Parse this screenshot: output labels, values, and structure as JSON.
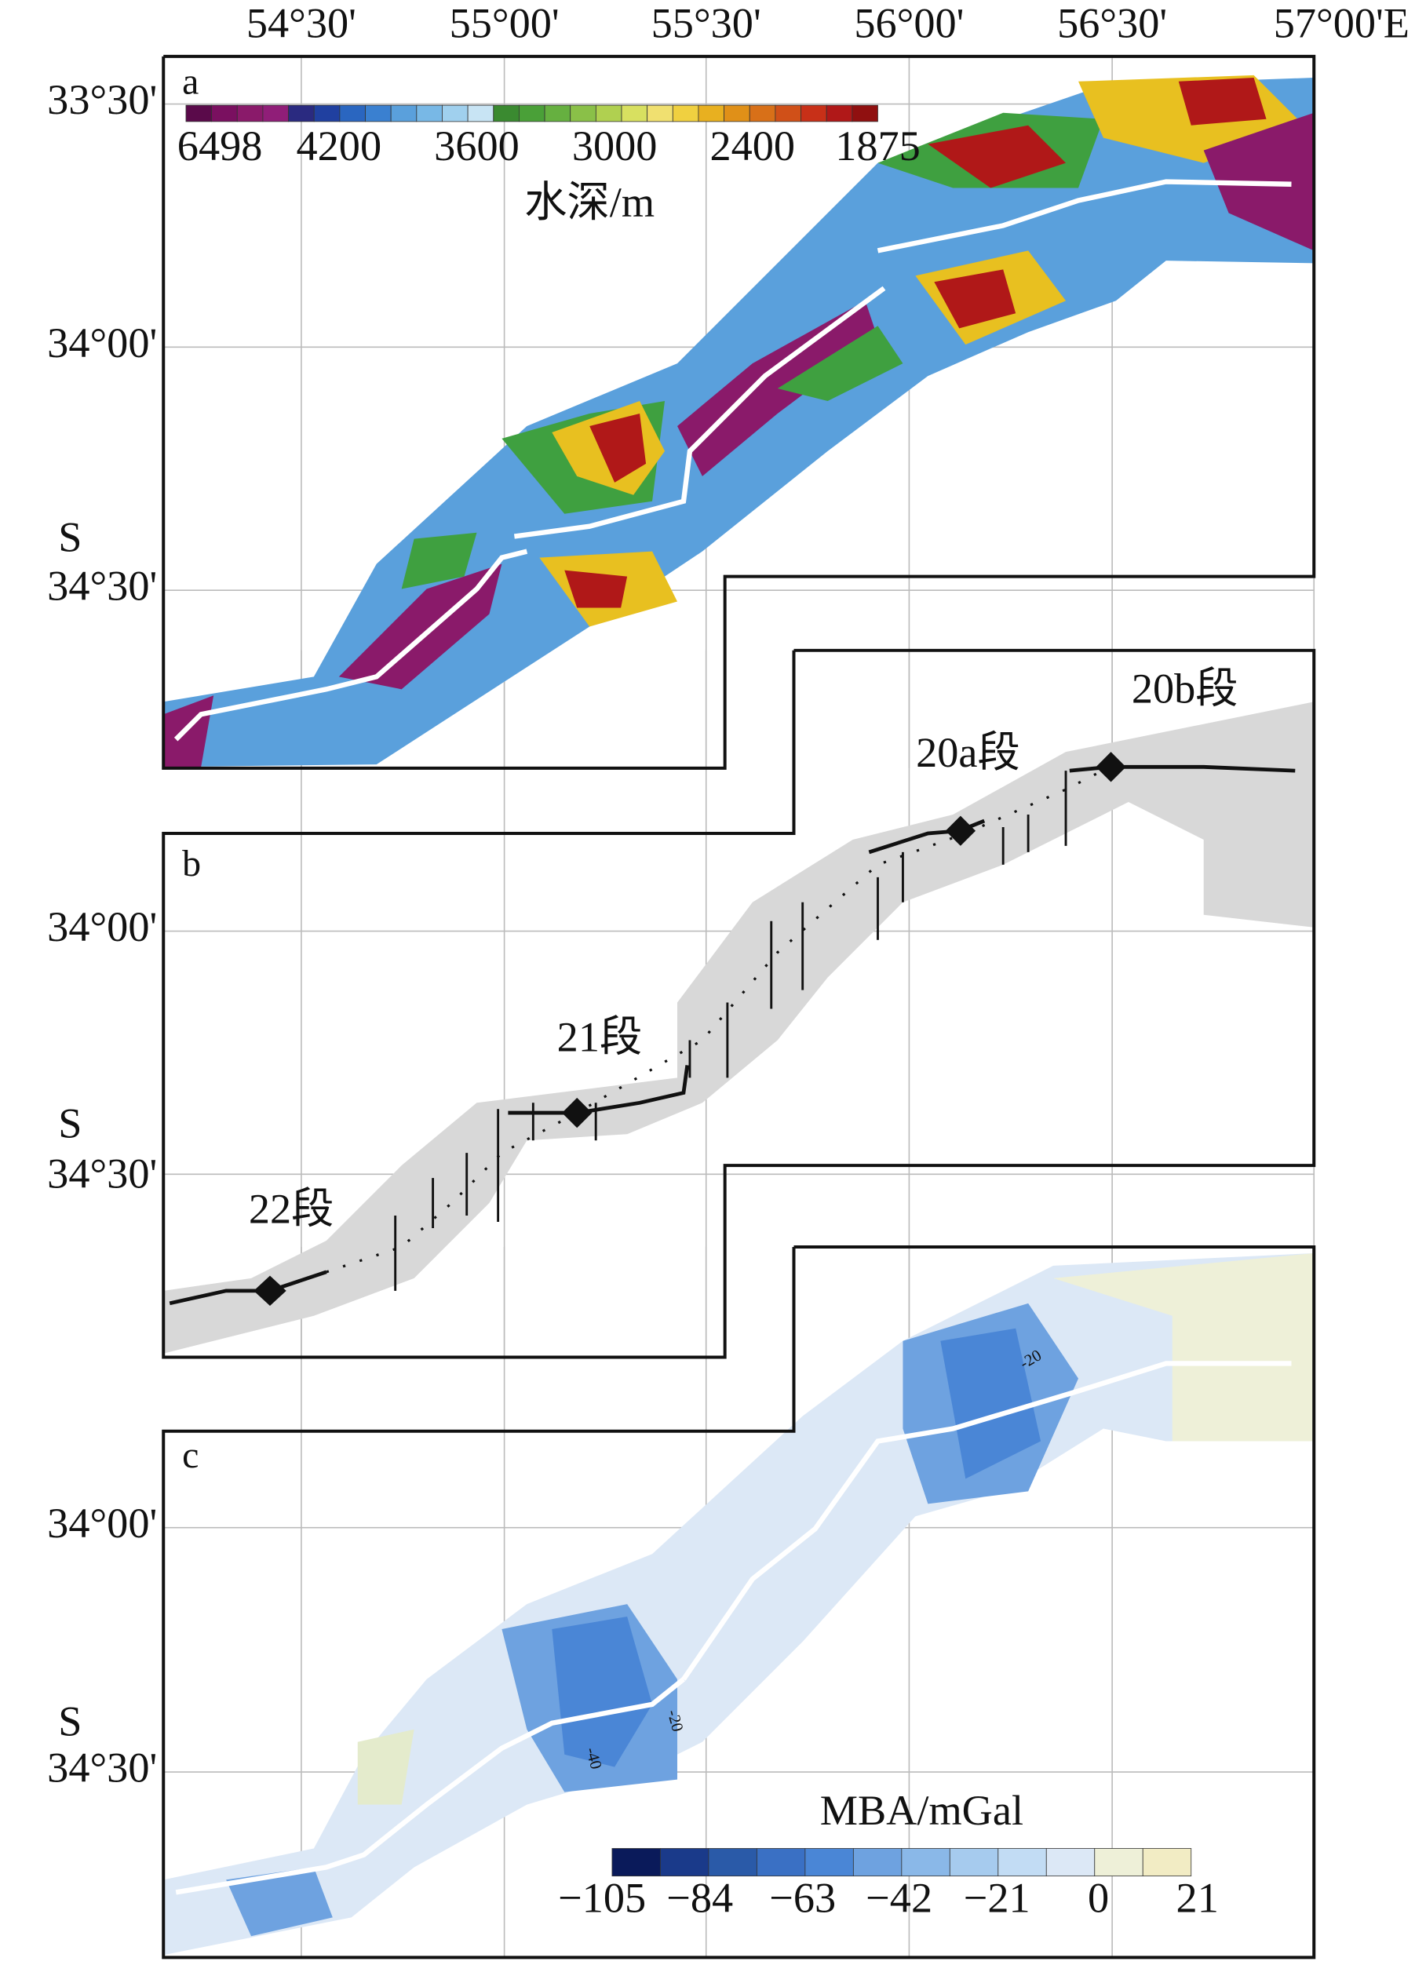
{
  "longitude_labels": [
    "54°30'",
    "55°00'",
    "55°30'",
    "56°00'",
    "56°30'",
    "57°00'E"
  ],
  "panels": [
    {
      "label": "a",
      "latitude_labels": [
        "33°30'",
        "34°00'",
        "S",
        "34°30'"
      ],
      "colorbar": {
        "ticks": [
          "6498",
          "4200",
          "3600",
          "3000",
          "2400",
          "1875"
        ],
        "title": "水深/m"
      }
    },
    {
      "label": "b",
      "latitude_labels": [
        "34°00'",
        "S",
        "34°30'"
      ],
      "segments": [
        "20b段",
        "20a段",
        "21段",
        "22段"
      ]
    },
    {
      "label": "c",
      "latitude_labels": [
        "34°00'",
        "S",
        "34°30'"
      ],
      "contour_labels": [
        "-20",
        "-40",
        "-20"
      ],
      "colorbar": {
        "title": "MBA/mGal",
        "ticks": [
          "−105",
          "−84",
          "−63",
          "−42",
          "−21",
          "0",
          "21"
        ]
      }
    }
  ]
}
